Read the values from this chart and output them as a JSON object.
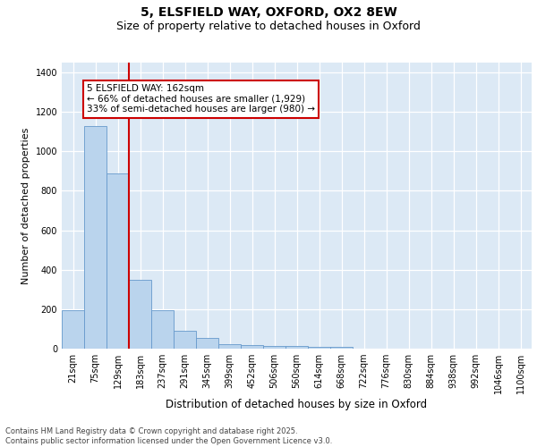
{
  "title1": "5, ELSFIELD WAY, OXFORD, OX2 8EW",
  "title2": "Size of property relative to detached houses in Oxford",
  "xlabel": "Distribution of detached houses by size in Oxford",
  "ylabel": "Number of detached properties",
  "bar_labels": [
    "21sqm",
    "75sqm",
    "129sqm",
    "183sqm",
    "237sqm",
    "291sqm",
    "345sqm",
    "399sqm",
    "452sqm",
    "506sqm",
    "560sqm",
    "614sqm",
    "668sqm",
    "722sqm",
    "776sqm",
    "830sqm",
    "884sqm",
    "938sqm",
    "992sqm",
    "1046sqm",
    "1100sqm"
  ],
  "bar_values": [
    195,
    1130,
    890,
    350,
    195,
    90,
    55,
    22,
    20,
    15,
    12,
    10,
    8,
    0,
    0,
    0,
    0,
    0,
    0,
    0,
    0
  ],
  "bar_color": "#bad4ed",
  "bar_edge_color": "#6699cc",
  "vline_x": 2.5,
  "vline_color": "#cc0000",
  "annotation_text": "5 ELSFIELD WAY: 162sqm\n← 66% of detached houses are smaller (1,929)\n33% of semi-detached houses are larger (980) →",
  "ylim": [
    0,
    1450
  ],
  "yticks": [
    0,
    200,
    400,
    600,
    800,
    1000,
    1200,
    1400
  ],
  "bg_color": "#dce9f5",
  "footer_text": "Contains HM Land Registry data © Crown copyright and database right 2025.\nContains public sector information licensed under the Open Government Licence v3.0.",
  "title1_fontsize": 10,
  "title2_fontsize": 9,
  "xlabel_fontsize": 8.5,
  "ylabel_fontsize": 8,
  "tick_fontsize": 7,
  "annotation_fontsize": 7.5,
  "footer_fontsize": 6
}
